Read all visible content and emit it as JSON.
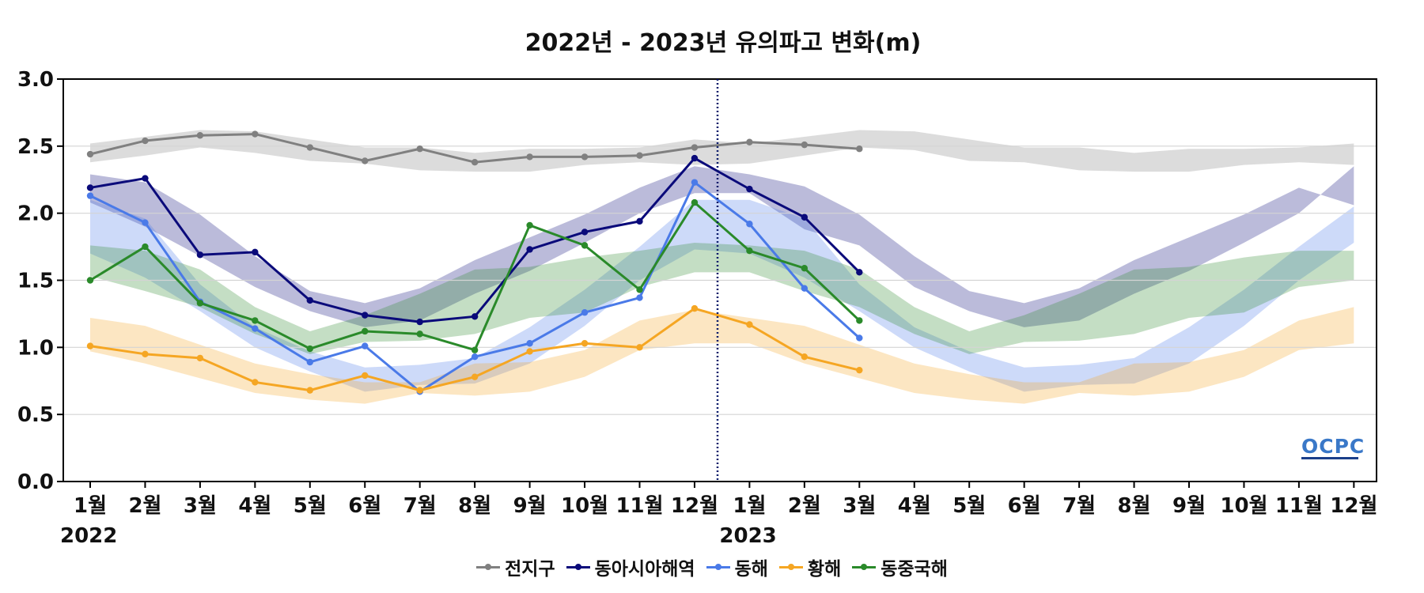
{
  "chart_data": {
    "type": "line",
    "title": "2022년 - 2023년 유의파고 변화(m)",
    "ylim": [
      0,
      3
    ],
    "yticks": [
      "0.0",
      "0.5",
      "1.0",
      "1.5",
      "2.0",
      "2.5",
      "3.0"
    ],
    "x_tick_labels": [
      "1월",
      "2월",
      "3월",
      "4월",
      "5월",
      "6월",
      "7월",
      "8월",
      "9월",
      "10월",
      "11월",
      "12월",
      "1월",
      "2월",
      "3월",
      "4월",
      "5월",
      "6월",
      "7월",
      "8월",
      "9월",
      "10월",
      "11월",
      "12월"
    ],
    "year_labels": [
      "2022",
      "2023"
    ],
    "year_boundary_after_index": 11,
    "grid": true,
    "legend_placement": "bottom-center",
    "watermark": "OCPC",
    "series": [
      {
        "name": "전지구",
        "color": "#808080",
        "values": [
          2.44,
          2.54,
          2.58,
          2.59,
          2.49,
          2.39,
          2.48,
          2.38,
          2.42,
          2.42,
          2.43,
          2.49,
          2.53,
          2.51,
          2.48
        ],
        "band_lower": [
          2.38,
          2.43,
          2.49,
          2.45,
          2.39,
          2.37,
          2.32,
          2.31,
          2.31,
          2.36,
          2.38,
          2.36,
          2.37,
          2.43,
          2.49,
          2.47,
          2.39,
          2.38,
          2.32,
          2.31,
          2.31,
          2.36,
          2.38,
          2.36
        ],
        "band_upper": [
          2.52,
          2.57,
          2.62,
          2.61,
          2.55,
          2.49,
          2.49,
          2.45,
          2.48,
          2.48,
          2.49,
          2.55,
          2.52,
          2.57,
          2.62,
          2.61,
          2.55,
          2.49,
          2.49,
          2.45,
          2.48,
          2.48,
          2.49,
          2.52
        ]
      },
      {
        "name": "동아시아해역",
        "color": "#0a0a7a",
        "values": [
          2.19,
          2.26,
          1.69,
          1.71,
          1.35,
          1.24,
          1.19,
          1.23,
          1.73,
          1.86,
          1.94,
          2.41,
          2.18,
          1.97,
          1.56
        ],
        "band_lower": [
          2.08,
          1.9,
          1.68,
          1.45,
          1.27,
          1.15,
          1.2,
          1.4,
          1.57,
          1.78,
          2.0,
          2.15,
          2.15,
          1.88,
          1.76,
          1.45,
          1.27,
          1.15,
          1.2,
          1.4,
          1.57,
          1.78,
          2.0,
          2.35
        ],
        "band_upper": [
          2.29,
          2.23,
          1.99,
          1.68,
          1.42,
          1.33,
          1.44,
          1.65,
          1.82,
          1.99,
          2.19,
          2.35,
          2.29,
          2.2,
          1.99,
          1.68,
          1.42,
          1.33,
          1.44,
          1.65,
          1.82,
          1.99,
          2.19,
          2.06
        ]
      },
      {
        "name": "동해",
        "color": "#4a7ae8",
        "values": [
          2.13,
          1.93,
          1.34,
          1.14,
          0.89,
          1.01,
          0.67,
          0.93,
          1.03,
          1.26,
          1.37,
          2.23,
          1.92,
          1.44,
          1.07
        ],
        "band_lower": [
          1.7,
          1.52,
          1.27,
          1.0,
          0.82,
          0.67,
          0.72,
          0.73,
          0.88,
          1.16,
          1.5,
          1.73,
          1.7,
          1.52,
          1.27,
          1.0,
          0.82,
          0.67,
          0.72,
          0.73,
          0.88,
          1.16,
          1.5,
          1.78
        ],
        "band_upper": [
          2.1,
          1.96,
          1.47,
          1.15,
          0.97,
          0.85,
          0.87,
          0.92,
          1.15,
          1.43,
          1.75,
          2.1,
          2.1,
          1.96,
          1.47,
          1.15,
          0.97,
          0.85,
          0.87,
          0.92,
          1.15,
          1.43,
          1.75,
          2.05
        ]
      },
      {
        "name": "황해",
        "color": "#f5a623",
        "values": [
          1.01,
          0.95,
          0.92,
          0.74,
          0.68,
          0.79,
          0.68,
          0.78,
          0.97,
          1.03,
          1.0,
          1.29,
          1.17,
          0.93,
          0.83
        ],
        "band_lower": [
          0.97,
          0.88,
          0.77,
          0.66,
          0.61,
          0.58,
          0.66,
          0.64,
          0.67,
          0.78,
          0.98,
          1.03,
          1.03,
          0.88,
          0.77,
          0.66,
          0.61,
          0.58,
          0.66,
          0.64,
          0.67,
          0.78,
          0.98,
          1.03
        ],
        "band_upper": [
          1.22,
          1.16,
          1.02,
          0.88,
          0.8,
          0.74,
          0.74,
          0.88,
          0.89,
          0.98,
          1.2,
          1.28,
          1.22,
          1.16,
          1.02,
          0.88,
          0.8,
          0.74,
          0.74,
          0.88,
          0.89,
          0.98,
          1.2,
          1.3
        ]
      },
      {
        "name": "동중국해",
        "color": "#2a8a2a",
        "values": [
          1.5,
          1.75,
          1.33,
          1.2,
          0.99,
          1.12,
          1.1,
          0.98,
          1.91,
          1.76,
          1.43,
          2.08,
          1.72,
          1.59,
          1.2
        ],
        "band_lower": [
          1.53,
          1.42,
          1.3,
          1.1,
          0.95,
          1.04,
          1.05,
          1.1,
          1.22,
          1.26,
          1.45,
          1.56,
          1.56,
          1.42,
          1.3,
          1.1,
          0.95,
          1.04,
          1.05,
          1.1,
          1.22,
          1.26,
          1.45,
          1.5
        ],
        "band_upper": [
          1.76,
          1.72,
          1.58,
          1.3,
          1.12,
          1.24,
          1.4,
          1.58,
          1.6,
          1.67,
          1.72,
          1.78,
          1.76,
          1.72,
          1.58,
          1.3,
          1.12,
          1.24,
          1.4,
          1.58,
          1.6,
          1.67,
          1.72,
          1.72
        ]
      }
    ]
  }
}
